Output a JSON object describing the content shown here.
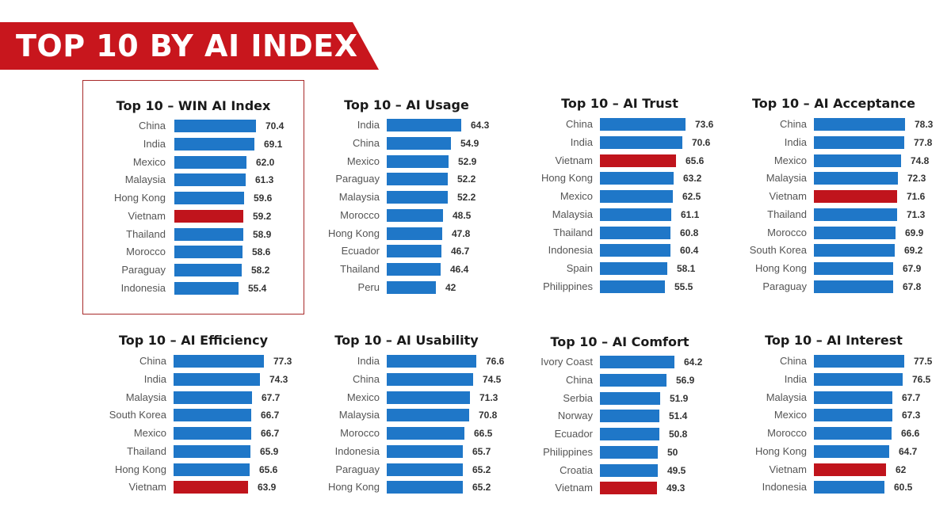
{
  "header": {
    "title": "TOP 10 BY AI INDEX"
  },
  "colors": {
    "bar": "#1f77c8",
    "highlight": "#c0141c",
    "banner": "#c8161d"
  },
  "chart_data": [
    {
      "type": "bar",
      "title": "Top 10 – WIN AI Index",
      "categories": [
        "China",
        "India",
        "Mexico",
        "Malaysia",
        "Hong Kong",
        "Vietnam",
        "Thailand",
        "Morocco",
        "Paraguay",
        "Indonesia"
      ],
      "values": [
        "70.4",
        "69.1",
        "62.0",
        "61.3",
        "59.6",
        "59.2",
        "58.9",
        "58.6",
        "58.2",
        "55.4"
      ],
      "highlight_category": "Vietnam"
    },
    {
      "type": "bar",
      "title": "Top 10 – AI Usage",
      "categories": [
        "India",
        "China",
        "Mexico",
        "Paraguay",
        "Malaysia",
        "Morocco",
        "Hong Kong",
        "Ecuador",
        "Thailand",
        "Peru"
      ],
      "values": [
        "64.3",
        "54.9",
        "52.9",
        "52.2",
        "52.2",
        "48.5",
        "47.8",
        "46.7",
        "46.4",
        "42"
      ],
      "highlight_category": ""
    },
    {
      "type": "bar",
      "title": "Top 10 – AI Trust",
      "categories": [
        "China",
        "India",
        "Vietnam",
        "Hong Kong",
        "Mexico",
        "Malaysia",
        "Thailand",
        "Indonesia",
        "Spain",
        "Philippines"
      ],
      "values": [
        "73.6",
        "70.6",
        "65.6",
        "63.2",
        "62.5",
        "61.1",
        "60.8",
        "60.4",
        "58.1",
        "55.5"
      ],
      "highlight_category": "Vietnam"
    },
    {
      "type": "bar",
      "title": "Top 10 – AI Acceptance",
      "categories": [
        "China",
        "India",
        "Mexico",
        "Malaysia",
        "Vietnam",
        "Thailand",
        "Morocco",
        "South Korea",
        "Hong Kong",
        "Paraguay"
      ],
      "values": [
        "78.3",
        "77.8",
        "74.8",
        "72.3",
        "71.6",
        "71.3",
        "69.9",
        "69.2",
        "67.9",
        "67.8"
      ],
      "highlight_category": "Vietnam"
    },
    {
      "type": "bar",
      "title": "Top 10 – AI Efficiency",
      "categories": [
        "China",
        "India",
        "Malaysia",
        "South Korea",
        "Mexico",
        "Thailand",
        "Hong Kong",
        "Vietnam"
      ],
      "values": [
        "77.3",
        "74.3",
        "67.7",
        "66.7",
        "66.7",
        "65.9",
        "65.6",
        "63.9"
      ],
      "highlight_category": "Vietnam"
    },
    {
      "type": "bar",
      "title": "Top 10 – AI Usability",
      "categories": [
        "India",
        "China",
        "Mexico",
        "Malaysia",
        "Morocco",
        "Indonesia",
        "Paraguay",
        "Hong Kong"
      ],
      "values": [
        "76.6",
        "74.5",
        "71.3",
        "70.8",
        "66.5",
        "65.7",
        "65.2",
        "65.2"
      ],
      "highlight_category": ""
    },
    {
      "type": "bar",
      "title": "Top 10 – AI Comfort",
      "categories": [
        "Ivory Coast",
        "China",
        "Serbia",
        "Norway",
        "Ecuador",
        "Philippines",
        "Croatia",
        "Vietnam"
      ],
      "values": [
        "64.2",
        "56.9",
        "51.9",
        "51.4",
        "50.8",
        "50",
        "49.5",
        "49.3"
      ],
      "highlight_category": "Vietnam"
    },
    {
      "type": "bar",
      "title": "Top 10 – AI Interest",
      "categories": [
        "China",
        "India",
        "Malaysia",
        "Mexico",
        "Morocco",
        "Hong Kong",
        "Vietnam",
        "Indonesia"
      ],
      "values": [
        "77.5",
        "76.5",
        "67.7",
        "67.3",
        "66.6",
        "64.7",
        "62",
        "60.5"
      ],
      "highlight_category": "Vietnam"
    }
  ]
}
